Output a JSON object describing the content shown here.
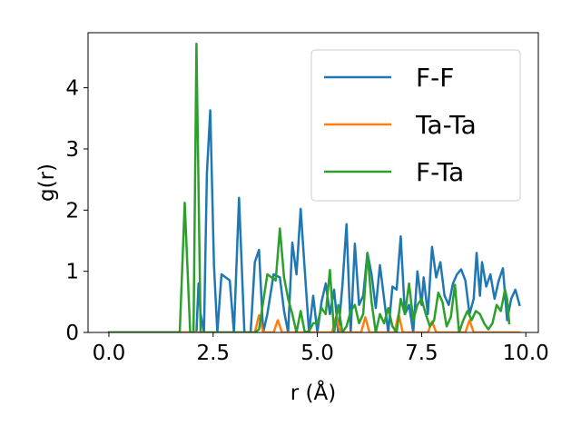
{
  "chart_data": {
    "type": "line",
    "title": "",
    "xlabel": "r (Å)",
    "ylabel": "g(r)",
    "xlim": [
      -0.5,
      10.3
    ],
    "ylim": [
      0,
      4.9
    ],
    "xticks": [
      0.0,
      2.5,
      5.0,
      7.5,
      10.0
    ],
    "xtick_labels": [
      "0.0",
      "2.5",
      "5.0",
      "7.5",
      "10.0"
    ],
    "yticks": [
      0,
      1,
      2,
      3,
      4
    ],
    "ytick_labels": [
      "0",
      "1",
      "2",
      "3",
      "4"
    ],
    "grid": false,
    "legend": "top-right",
    "series": [
      {
        "name": "F-F",
        "color": "#1f77b4",
        "points": [
          [
            0.0,
            0
          ],
          [
            1.8,
            0
          ],
          [
            1.9,
            0
          ],
          [
            2.0,
            0
          ],
          [
            2.1,
            0
          ],
          [
            2.15,
            0.8
          ],
          [
            2.2,
            0.3
          ],
          [
            2.28,
            0
          ],
          [
            2.35,
            2.6
          ],
          [
            2.43,
            3.63
          ],
          [
            2.52,
            1.1
          ],
          [
            2.6,
            0
          ],
          [
            2.7,
            0.95
          ],
          [
            2.8,
            0.9
          ],
          [
            2.9,
            0.85
          ],
          [
            3.0,
            0
          ],
          [
            3.12,
            2.2
          ],
          [
            3.25,
            0
          ],
          [
            3.4,
            0
          ],
          [
            3.5,
            1.15
          ],
          [
            3.6,
            1.35
          ],
          [
            3.7,
            0
          ],
          [
            3.8,
            0.3
          ],
          [
            3.95,
            0.95
          ],
          [
            4.1,
            0.9
          ],
          [
            4.2,
            0.35
          ],
          [
            4.3,
            0
          ],
          [
            4.4,
            1.47
          ],
          [
            4.5,
            0.95
          ],
          [
            4.6,
            2.02
          ],
          [
            4.7,
            1.0
          ],
          [
            4.8,
            0
          ],
          [
            4.9,
            0.6
          ],
          [
            5.0,
            0
          ],
          [
            5.1,
            0.5
          ],
          [
            5.2,
            0.8
          ],
          [
            5.3,
            0.3
          ],
          [
            5.4,
            0.7
          ],
          [
            5.5,
            0
          ],
          [
            5.6,
            0.75
          ],
          [
            5.7,
            1.77
          ],
          [
            5.8,
            0
          ],
          [
            5.9,
            1.45
          ],
          [
            6.0,
            0.45
          ],
          [
            6.1,
            0.6
          ],
          [
            6.2,
            1.3
          ],
          [
            6.3,
            0.95
          ],
          [
            6.4,
            0.4
          ],
          [
            6.5,
            1.1
          ],
          [
            6.6,
            0.55
          ],
          [
            6.7,
            0
          ],
          [
            6.8,
            0.75
          ],
          [
            6.9,
            0.7
          ],
          [
            7.0,
            1.57
          ],
          [
            7.1,
            0.3
          ],
          [
            7.2,
            0.45
          ],
          [
            7.3,
            0
          ],
          [
            7.4,
            1.0
          ],
          [
            7.5,
            0.45
          ],
          [
            7.55,
            0.9
          ],
          [
            7.65,
            0.3
          ],
          [
            7.75,
            1.4
          ],
          [
            7.85,
            0.9
          ],
          [
            7.95,
            1.15
          ],
          [
            8.05,
            0.6
          ],
          [
            8.15,
            0.45
          ],
          [
            8.25,
            0.8
          ],
          [
            8.35,
            0.95
          ],
          [
            8.45,
            1.03
          ],
          [
            8.55,
            0.85
          ],
          [
            8.65,
            0.3
          ],
          [
            8.75,
            0.55
          ],
          [
            8.82,
            1.3
          ],
          [
            8.9,
            0.6
          ],
          [
            8.95,
            1.15
          ],
          [
            9.05,
            0.75
          ],
          [
            9.15,
            0.95
          ],
          [
            9.25,
            0.55
          ],
          [
            9.35,
            0.85
          ],
          [
            9.45,
            1.05
          ],
          [
            9.55,
            0.2
          ],
          [
            9.65,
            0.55
          ],
          [
            9.75,
            0.7
          ],
          [
            9.85,
            0.45
          ]
        ]
      },
      {
        "name": "Ta-Ta",
        "color": "#ff7f0e",
        "points": [
          [
            0.0,
            0
          ],
          [
            3.4,
            0
          ],
          [
            3.5,
            0
          ],
          [
            3.6,
            0.28
          ],
          [
            3.7,
            0
          ],
          [
            3.95,
            0
          ],
          [
            4.05,
            0.2
          ],
          [
            4.15,
            0
          ],
          [
            5.35,
            0
          ],
          [
            5.45,
            0.26
          ],
          [
            5.55,
            0
          ],
          [
            6.05,
            0
          ],
          [
            6.15,
            0.25
          ],
          [
            6.25,
            0
          ],
          [
            6.85,
            0
          ],
          [
            6.95,
            0.3
          ],
          [
            7.05,
            0
          ],
          [
            7.65,
            0
          ],
          [
            7.75,
            0.18
          ],
          [
            7.85,
            0
          ],
          [
            8.55,
            0
          ],
          [
            8.65,
            0.2
          ],
          [
            8.75,
            0
          ],
          [
            9.85,
            0
          ]
        ]
      },
      {
        "name": "F-Ta",
        "color": "#2ca02c",
        "points": [
          [
            0.0,
            0
          ],
          [
            1.7,
            0
          ],
          [
            1.82,
            2.12
          ],
          [
            1.95,
            0
          ],
          [
            2.03,
            0
          ],
          [
            2.1,
            4.72
          ],
          [
            2.2,
            0
          ],
          [
            3.5,
            0
          ],
          [
            3.6,
            0.05
          ],
          [
            3.7,
            0.5
          ],
          [
            3.8,
            0.95
          ],
          [
            3.9,
            0.9
          ],
          [
            4.0,
            0.85
          ],
          [
            4.1,
            1.7
          ],
          [
            4.2,
            0.9
          ],
          [
            4.3,
            0.55
          ],
          [
            4.4,
            0.3
          ],
          [
            4.5,
            0
          ],
          [
            4.6,
            0.35
          ],
          [
            4.7,
            0
          ],
          [
            4.8,
            0.02
          ],
          [
            4.9,
            0.15
          ],
          [
            5.0,
            0.15
          ],
          [
            5.1,
            0.4
          ],
          [
            5.2,
            0.3
          ],
          [
            5.3,
            1.02
          ],
          [
            5.4,
            0
          ],
          [
            5.5,
            0.45
          ],
          [
            5.6,
            0
          ],
          [
            5.7,
            0.1
          ],
          [
            5.8,
            0.35
          ],
          [
            5.9,
            0.45
          ],
          [
            6.0,
            0.15
          ],
          [
            6.1,
            0.3
          ],
          [
            6.2,
            1.3
          ],
          [
            6.3,
            0.5
          ],
          [
            6.4,
            0
          ],
          [
            6.5,
            0.3
          ],
          [
            6.6,
            0.15
          ],
          [
            6.7,
            0.4
          ],
          [
            6.8,
            0.1
          ],
          [
            6.9,
            0
          ],
          [
            7.0,
            0.55
          ],
          [
            7.1,
            0.3
          ],
          [
            7.2,
            0.8
          ],
          [
            7.3,
            0.2
          ],
          [
            7.4,
            0.45
          ],
          [
            7.5,
            0.55
          ],
          [
            7.6,
            0.3
          ],
          [
            7.7,
            0.1
          ],
          [
            7.8,
            0.2
          ],
          [
            7.9,
            0.65
          ],
          [
            8.0,
            0.5
          ],
          [
            8.1,
            0.1
          ],
          [
            8.2,
            0.25
          ],
          [
            8.3,
            0.78
          ],
          [
            8.4,
            0
          ],
          [
            8.5,
            0.2
          ],
          [
            8.6,
            0.35
          ],
          [
            8.7,
            0.2
          ],
          [
            8.8,
            0.35
          ],
          [
            8.9,
            0.3
          ],
          [
            9.0,
            0.15
          ],
          [
            9.1,
            0.05
          ],
          [
            9.2,
            0.15
          ],
          [
            9.3,
            0.45
          ],
          [
            9.4,
            0.35
          ],
          [
            9.5,
            0.7
          ],
          [
            9.55,
            0.55
          ],
          [
            9.6,
            0.15
          ]
        ]
      }
    ]
  }
}
